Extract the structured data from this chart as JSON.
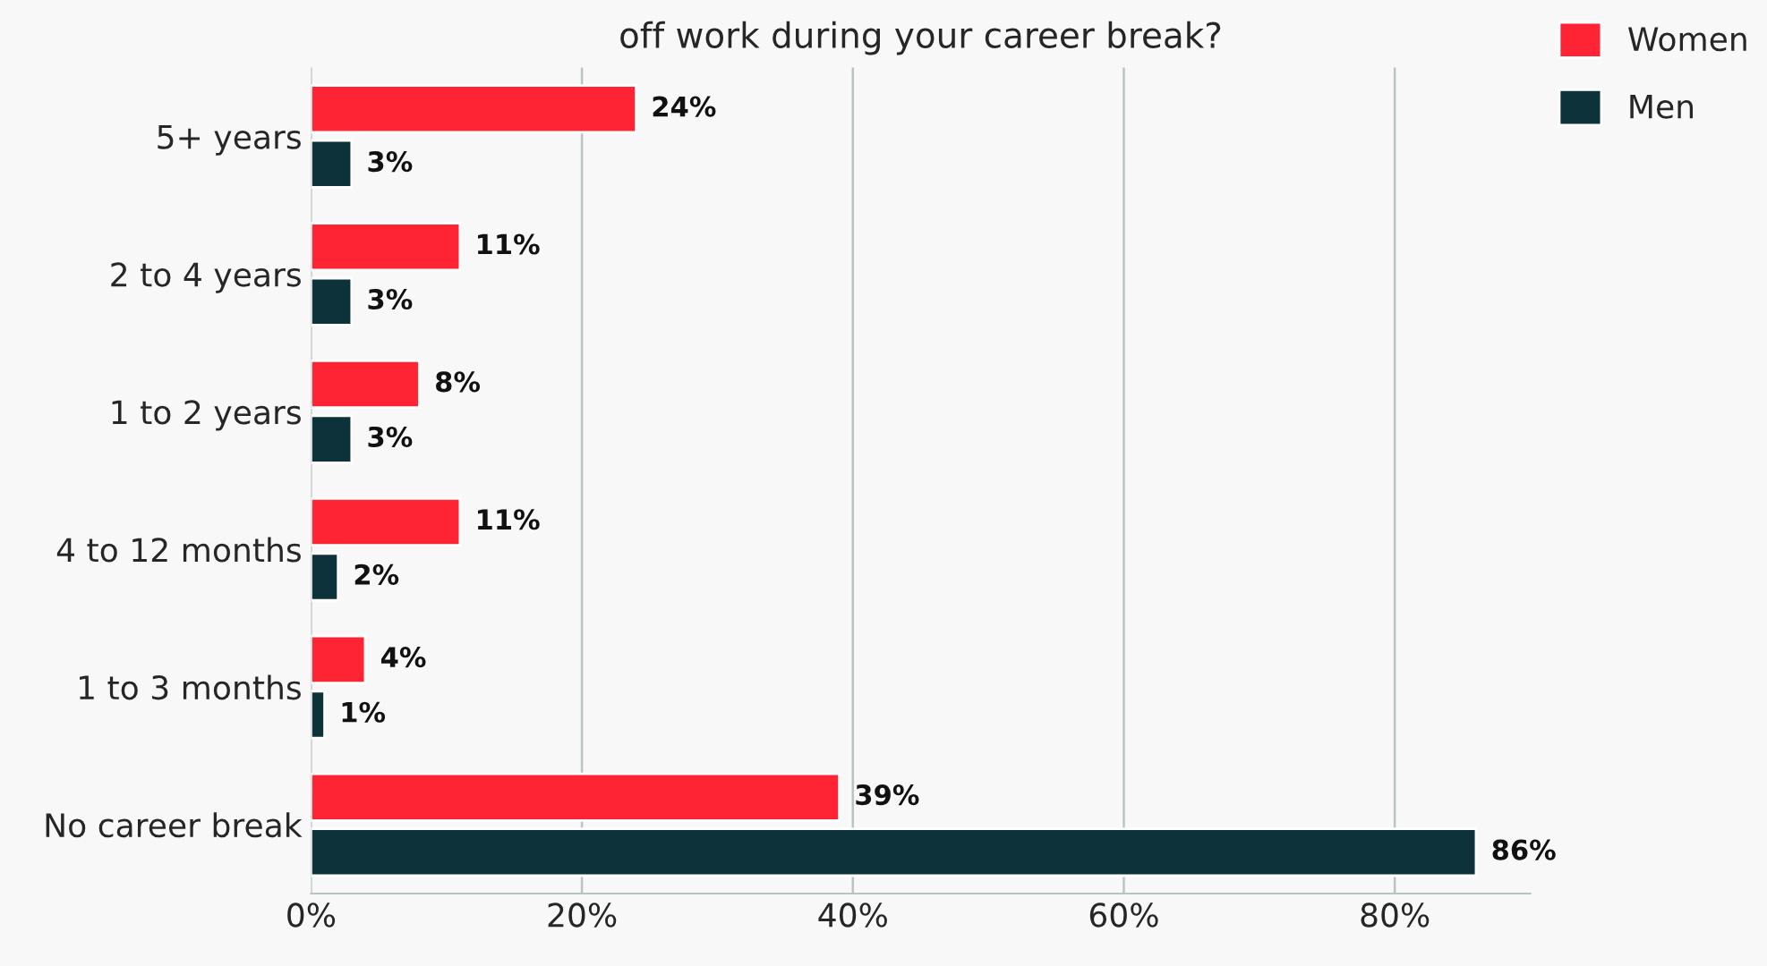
{
  "chart_data": {
    "type": "bar",
    "orientation": "horizontal",
    "title": "off work during your career break?",
    "categories": [
      "5+ years",
      "2 to 4 years",
      "1 to 2 years",
      "4 to 12 months",
      "1 to 3 months",
      "No career break"
    ],
    "series": [
      {
        "name": "Women",
        "color": "#ff2433",
        "values": [
          24,
          11,
          8,
          11,
          4,
          39
        ],
        "value_labels": [
          "24%",
          "11%",
          "8%",
          "11%",
          "4%",
          "39%"
        ]
      },
      {
        "name": "Men",
        "color": "#0d323a",
        "values": [
          3,
          3,
          3,
          2,
          1,
          86
        ],
        "value_labels": [
          "3%",
          "3%",
          "3%",
          "2%",
          "1%",
          "86%"
        ]
      }
    ],
    "xlim": [
      0,
      90
    ],
    "xticks": [
      {
        "value": 0,
        "label": "0%"
      },
      {
        "value": 20,
        "label": "20%"
      },
      {
        "value": 40,
        "label": "40%"
      },
      {
        "value": 60,
        "label": "60%"
      },
      {
        "value": 80,
        "label": "80%"
      }
    ],
    "grid": "x",
    "legend": "top right"
  }
}
